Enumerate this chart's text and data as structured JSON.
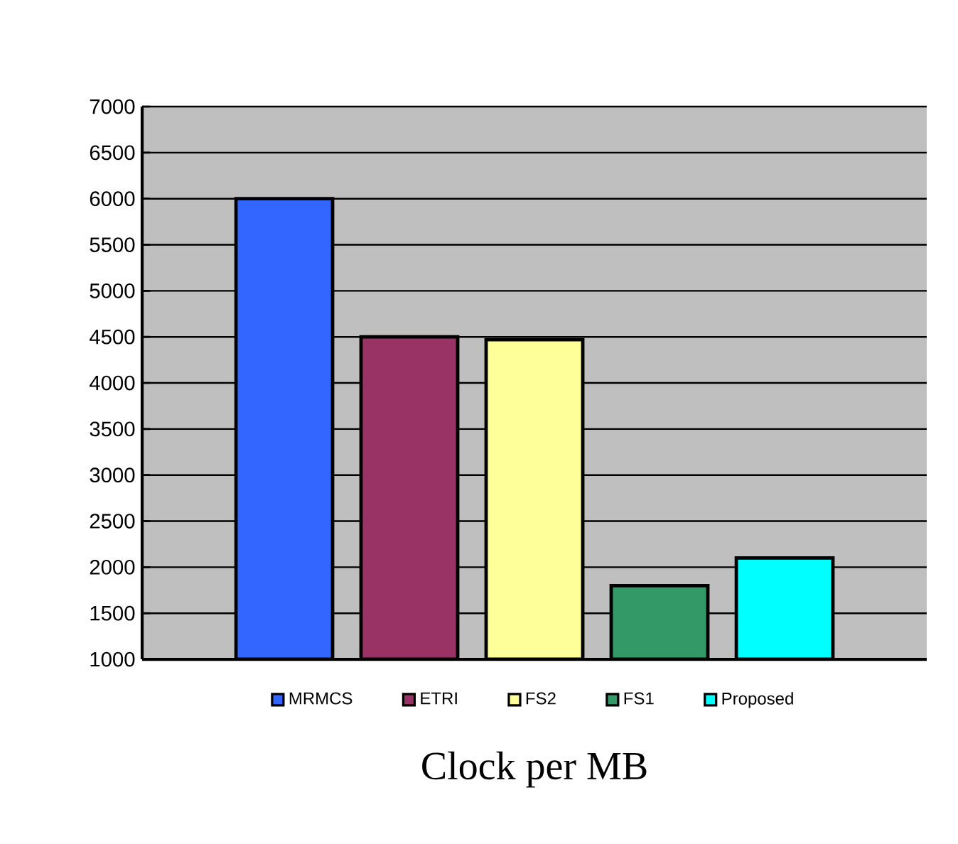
{
  "chart_data": {
    "type": "bar",
    "xlabel": "Clock per MB",
    "categories": [
      null
    ],
    "series": [
      {
        "name": "MRMCS",
        "color": "#3366ff",
        "values": [
          6000
        ]
      },
      {
        "name": "ETRI",
        "color": "#993366",
        "values": [
          4500
        ]
      },
      {
        "name": "FS2",
        "color": "#ffff99",
        "values": [
          4470
        ]
      },
      {
        "name": "FS1",
        "color": "#339966",
        "values": [
          1800
        ]
      },
      {
        "name": "Proposed",
        "color": "#00ffff",
        "values": [
          2100
        ]
      }
    ],
    "ylim": [
      1000,
      7000
    ],
    "yticks": [
      1000,
      1500,
      2000,
      2500,
      3000,
      3500,
      4000,
      4500,
      5000,
      5500,
      6000,
      6500,
      7000
    ],
    "grid": "y",
    "legend": "bottom"
  }
}
